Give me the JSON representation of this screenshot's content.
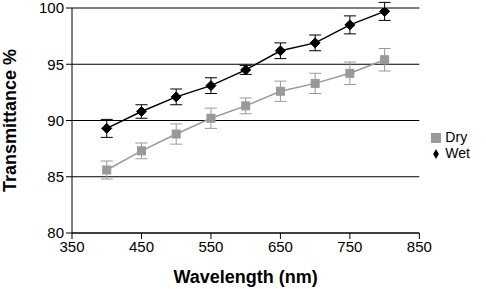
{
  "chart_data": {
    "type": "line",
    "x_label": "Wavelength (nm)",
    "y_label": "Transmittance %",
    "x": [
      400,
      450,
      500,
      550,
      600,
      650,
      700,
      750,
      800
    ],
    "series": [
      {
        "name": "Wet",
        "color": "#000000",
        "marker": "diamond",
        "values": [
          89.3,
          90.8,
          92.1,
          93.1,
          94.5,
          96.2,
          96.9,
          98.5,
          99.7
        ],
        "errors": [
          0.8,
          0.6,
          0.7,
          0.7,
          0.4,
          0.7,
          0.7,
          0.8,
          0.8
        ]
      },
      {
        "name": "Dry",
        "color": "#999999",
        "marker": "square",
        "values": [
          85.6,
          87.3,
          88.8,
          90.2,
          91.3,
          92.6,
          93.3,
          94.2,
          95.4
        ],
        "errors": [
          0.8,
          0.7,
          0.9,
          0.9,
          0.7,
          0.9,
          0.9,
          1.0,
          1.0
        ]
      }
    ],
    "xlim": [
      350,
      850
    ],
    "xticks": [
      350,
      450,
      550,
      650,
      750,
      850
    ],
    "ylim": [
      80,
      100
    ],
    "yticks": [
      80,
      85,
      90,
      95,
      100
    ],
    "grid": true,
    "legend": "right"
  }
}
